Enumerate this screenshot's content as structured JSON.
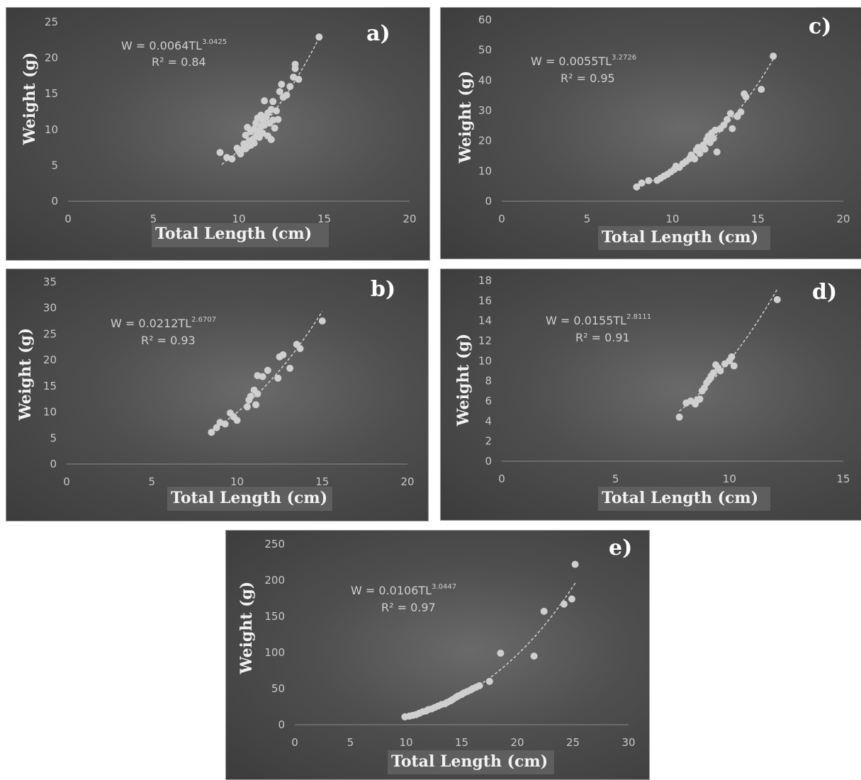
{
  "chart_data": [
    {
      "id": "a",
      "type": "scatter",
      "panel_label": "a)",
      "xlabel": "Total Length (cm)",
      "ylabel": "Weight (g)",
      "xlim": [
        0,
        20
      ],
      "ylim": [
        0,
        25
      ],
      "xticks": [
        "0",
        "5",
        "10",
        "15",
        "20"
      ],
      "yticks": [
        "0",
        "5",
        "10",
        "15",
        "20",
        "25"
      ],
      "equation": {
        "lhs": "W = 0.0064TL",
        "exponent": "3.0425"
      },
      "r2": "R² = 0.84",
      "trendline": {
        "a": 0.0064,
        "b": 3.0425,
        "x_from": 9,
        "x_to": 14.8
      },
      "series": [
        {
          "points": [
            [
              8.9,
              6.8
            ],
            [
              9.3,
              6.1
            ],
            [
              9.6,
              5.9
            ],
            [
              9.9,
              7.4
            ],
            [
              10.0,
              7.0
            ],
            [
              10.1,
              6.6
            ],
            [
              10.2,
              7.2
            ],
            [
              10.3,
              8.0
            ],
            [
              10.4,
              7.3
            ],
            [
              10.4,
              9.2
            ],
            [
              10.5,
              7.6
            ],
            [
              10.5,
              10.3
            ],
            [
              10.6,
              8.4
            ],
            [
              10.6,
              8.0
            ],
            [
              10.7,
              7.8
            ],
            [
              10.7,
              9.7
            ],
            [
              10.8,
              8.6
            ],
            [
              10.9,
              8.1
            ],
            [
              10.9,
              10.1
            ],
            [
              11.0,
              9.0
            ],
            [
              11.0,
              10.9
            ],
            [
              11.1,
              9.4
            ],
            [
              11.1,
              11.6
            ],
            [
              11.2,
              9.8
            ],
            [
              11.2,
              8.9
            ],
            [
              11.3,
              10.4
            ],
            [
              11.3,
              12.0
            ],
            [
              11.4,
              11.2
            ],
            [
              11.4,
              9.5
            ],
            [
              11.5,
              10.6
            ],
            [
              11.5,
              14.0
            ],
            [
              11.6,
              11.7
            ],
            [
              11.7,
              9.1
            ],
            [
              11.7,
              12.3
            ],
            [
              11.8,
              10.9
            ],
            [
              11.9,
              8.6
            ],
            [
              11.9,
              12.8
            ],
            [
              12.0,
              13.9
            ],
            [
              12.0,
              11.3
            ],
            [
              12.1,
              10.2
            ],
            [
              12.2,
              12.6
            ],
            [
              12.3,
              11.4
            ],
            [
              12.4,
              15.3
            ],
            [
              12.5,
              16.3
            ],
            [
              12.6,
              14.5
            ],
            [
              12.8,
              14.8
            ],
            [
              13.0,
              16.0
            ],
            [
              13.2,
              17.3
            ],
            [
              13.3,
              18.5
            ],
            [
              13.3,
              19.1
            ],
            [
              13.5,
              17.0
            ],
            [
              14.7,
              22.9
            ]
          ]
        }
      ]
    },
    {
      "id": "b",
      "type": "scatter",
      "panel_label": "b)",
      "xlabel": "Total Length (cm)",
      "ylabel": "Weight (g)",
      "xlim": [
        0,
        20
      ],
      "ylim": [
        0,
        35
      ],
      "xticks": [
        "0",
        "5",
        "10",
        "15",
        "20"
      ],
      "yticks": [
        "0",
        "5",
        "10",
        "15",
        "20",
        "25",
        "30",
        "35"
      ],
      "equation": {
        "lhs": "W = 0.0212TL",
        "exponent": "2.6707"
      },
      "r2": "R² = 0.93",
      "trendline": {
        "a": 0.0212,
        "b": 2.6707,
        "x_from": 8.5,
        "x_to": 15.0
      },
      "series": [
        {
          "points": [
            [
              8.5,
              6.1
            ],
            [
              8.8,
              7.0
            ],
            [
              9.0,
              8.0
            ],
            [
              9.3,
              7.7
            ],
            [
              9.6,
              9.8
            ],
            [
              9.8,
              9.1
            ],
            [
              10.0,
              8.4
            ],
            [
              10.6,
              11.0
            ],
            [
              10.7,
              12.3
            ],
            [
              10.8,
              13.0
            ],
            [
              11.0,
              14.2
            ],
            [
              11.1,
              11.4
            ],
            [
              11.2,
              13.5
            ],
            [
              11.2,
              17.0
            ],
            [
              11.5,
              16.8
            ],
            [
              11.8,
              18.0
            ],
            [
              12.4,
              16.5
            ],
            [
              12.5,
              20.6
            ],
            [
              12.7,
              21.0
            ],
            [
              13.1,
              18.4
            ],
            [
              13.5,
              23.0
            ],
            [
              13.7,
              22.2
            ],
            [
              15.0,
              27.5
            ]
          ]
        }
      ]
    },
    {
      "id": "c",
      "type": "scatter",
      "panel_label": "c)",
      "xlabel": "Total Length (cm)",
      "ylabel": "Weight (g)",
      "xlim": [
        0,
        20
      ],
      "ylim": [
        0,
        60
      ],
      "xticks": [
        "0",
        "5",
        "10",
        "15",
        "20"
      ],
      "yticks": [
        "0",
        "10",
        "20",
        "30",
        "40",
        "50",
        "60"
      ],
      "equation": {
        "lhs": "W = 0.0055TL",
        "exponent": "3.2726"
      },
      "r2": "R² = 0.95",
      "trendline": {
        "a": 0.0055,
        "b": 3.2726,
        "x_from": 7.9,
        "x_to": 16.0
      },
      "series": [
        {
          "points": [
            [
              7.9,
              4.7
            ],
            [
              8.2,
              6.0
            ],
            [
              8.6,
              6.8
            ],
            [
              9.1,
              6.9
            ],
            [
              9.3,
              7.6
            ],
            [
              9.5,
              8.3
            ],
            [
              9.7,
              8.9
            ],
            [
              9.9,
              9.7
            ],
            [
              10.1,
              10.5
            ],
            [
              10.2,
              11.6
            ],
            [
              10.4,
              11.2
            ],
            [
              10.6,
              12.4
            ],
            [
              10.8,
              13.2
            ],
            [
              11.0,
              14.1
            ],
            [
              11.1,
              15.3
            ],
            [
              11.3,
              14.0
            ],
            [
              11.4,
              16.9
            ],
            [
              11.5,
              17.8
            ],
            [
              11.6,
              15.8
            ],
            [
              11.8,
              18.6
            ],
            [
              11.9,
              17.2
            ],
            [
              12.0,
              20.3
            ],
            [
              12.1,
              21.5
            ],
            [
              12.2,
              19.4
            ],
            [
              12.3,
              22.6
            ],
            [
              12.4,
              20.8
            ],
            [
              12.5,
              23.5
            ],
            [
              12.6,
              16.3
            ],
            [
              12.8,
              24.0
            ],
            [
              13.0,
              25.2
            ],
            [
              13.2,
              27.0
            ],
            [
              13.4,
              29.0
            ],
            [
              13.5,
              24.0
            ],
            [
              13.8,
              28.0
            ],
            [
              14.0,
              29.5
            ],
            [
              14.2,
              35.5
            ],
            [
              14.3,
              34.5
            ],
            [
              15.2,
              37.0
            ],
            [
              15.9,
              48.0
            ]
          ]
        }
      ]
    },
    {
      "id": "d",
      "type": "scatter",
      "panel_label": "d)",
      "xlabel": "Total Length (cm)",
      "ylabel": "Weight (g)",
      "xlim": [
        0,
        15
      ],
      "ylim": [
        0,
        18
      ],
      "xticks": [
        "0",
        "5",
        "10",
        "15"
      ],
      "yticks": [
        "0",
        "2",
        "4",
        "6",
        "8",
        "10",
        "12",
        "14",
        "16",
        "18"
      ],
      "equation": {
        "lhs": "W = 0.0155TL",
        "exponent": "2.8111"
      },
      "r2": "R² = 0.91",
      "trendline": {
        "a": 0.0155,
        "b": 2.8111,
        "x_from": 7.8,
        "x_to": 12.1
      },
      "series": [
        {
          "points": [
            [
              7.8,
              4.4
            ],
            [
              8.1,
              5.8
            ],
            [
              8.3,
              6.0
            ],
            [
              8.5,
              5.7
            ],
            [
              8.6,
              6.1
            ],
            [
              8.7,
              6.2
            ],
            [
              8.8,
              7.0
            ],
            [
              8.9,
              7.3
            ],
            [
              9.0,
              7.8
            ],
            [
              9.1,
              8.1
            ],
            [
              9.2,
              8.5
            ],
            [
              9.3,
              8.8
            ],
            [
              9.4,
              9.6
            ],
            [
              9.5,
              9.3
            ],
            [
              9.6,
              9.0
            ],
            [
              9.8,
              9.7
            ],
            [
              10.0,
              10.0
            ],
            [
              10.1,
              10.4
            ],
            [
              10.2,
              9.5
            ],
            [
              12.1,
              16.1
            ]
          ]
        }
      ]
    },
    {
      "id": "e",
      "type": "scatter",
      "panel_label": "e)",
      "xlabel": "Total Length (cm)",
      "ylabel": "Weight (g)",
      "xlim": [
        0,
        30
      ],
      "ylim": [
        0,
        250
      ],
      "xticks": [
        "0",
        "5",
        "10",
        "15",
        "20",
        "25",
        "30"
      ],
      "yticks": [
        "0",
        "50",
        "100",
        "150",
        "200",
        "250"
      ],
      "equation": {
        "lhs": "W = 0.0106TL",
        "exponent": "3.0447"
      },
      "r2": "R² = 0.97",
      "trendline": {
        "a": 0.0106,
        "b": 3.0447,
        "x_from": 10.0,
        "x_to": 25.3
      },
      "series": [
        {
          "points": [
            [
              9.9,
              11
            ],
            [
              10.3,
              12
            ],
            [
              10.6,
              13
            ],
            [
              10.9,
              14
            ],
            [
              11.2,
              16
            ],
            [
              11.5,
              18
            ],
            [
              11.8,
              19
            ],
            [
              12.0,
              21
            ],
            [
              12.3,
              22
            ],
            [
              12.6,
              24
            ],
            [
              12.9,
              26
            ],
            [
              13.2,
              28
            ],
            [
              13.5,
              29
            ],
            [
              13.7,
              31
            ],
            [
              14.0,
              33
            ],
            [
              14.2,
              35
            ],
            [
              14.5,
              38
            ],
            [
              14.7,
              40
            ],
            [
              15.0,
              42
            ],
            [
              15.2,
              44
            ],
            [
              15.5,
              46
            ],
            [
              15.8,
              48
            ],
            [
              16.0,
              50
            ],
            [
              16.3,
              52
            ],
            [
              16.6,
              54
            ],
            [
              17.5,
              60
            ],
            [
              18.5,
              99
            ],
            [
              21.5,
              95
            ],
            [
              22.4,
              157
            ],
            [
              24.2,
              167
            ],
            [
              24.9,
              174
            ],
            [
              25.2,
              222
            ]
          ]
        }
      ]
    }
  ]
}
